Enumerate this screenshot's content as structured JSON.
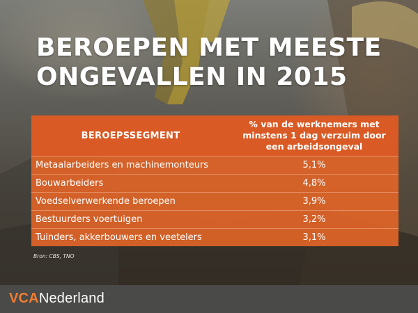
{
  "title": {
    "line1": "BEROEPEN MET MEESTE",
    "line2": "ONGEVALLEN IN 2015"
  },
  "chart_data": {
    "type": "table",
    "columns": [
      "BEROEPSSEGMENT",
      "% van de werknemers met minstens 1 dag verzuim  door een arbeidsongeval"
    ],
    "rows": [
      {
        "label": "Metaalarbeiders en machinemonteurs",
        "value": "5,1%"
      },
      {
        "label": "Bouwarbeiders",
        "value": "4,8%"
      },
      {
        "label": "Voedselverwerkende beroepen",
        "value": "3,9%"
      },
      {
        "label": "Bestuurders voertuigen",
        "value": "3,2%"
      },
      {
        "label": "Tuinders, akkerbouwers en veetelers",
        "value": "3,1%"
      }
    ]
  },
  "source": "Bron: CBS, TNO",
  "footer": {
    "logo_part1": "VCA",
    "logo_part2": "Nederland"
  },
  "colors": {
    "accent": "#d95a24",
    "logo_accent": "#f07d34",
    "footer_bg": "#4a4a48"
  }
}
